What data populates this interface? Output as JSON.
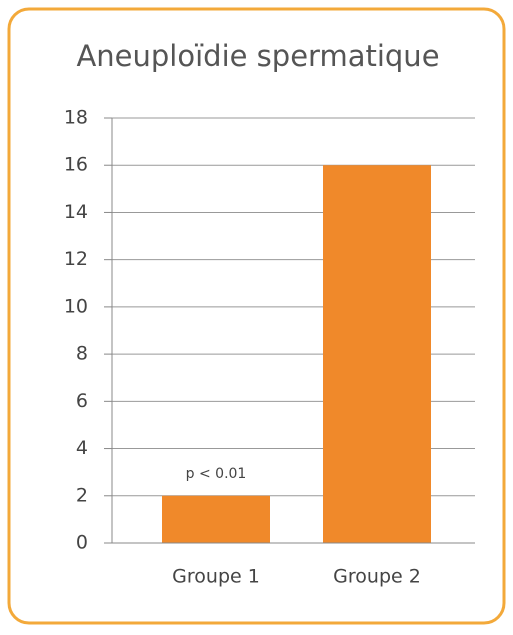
{
  "chart_data": {
    "type": "bar",
    "title": "Aneuploïdie spermatique",
    "categories": [
      "Groupe 1",
      "Groupe 2"
    ],
    "values": [
      2,
      16
    ],
    "color": "#f0892a",
    "annotation": "p < 0.01",
    "ylim": [
      0,
      18
    ],
    "yticks": [
      0,
      2,
      4,
      6,
      8,
      10,
      12,
      14,
      16,
      18
    ],
    "grid": true
  }
}
